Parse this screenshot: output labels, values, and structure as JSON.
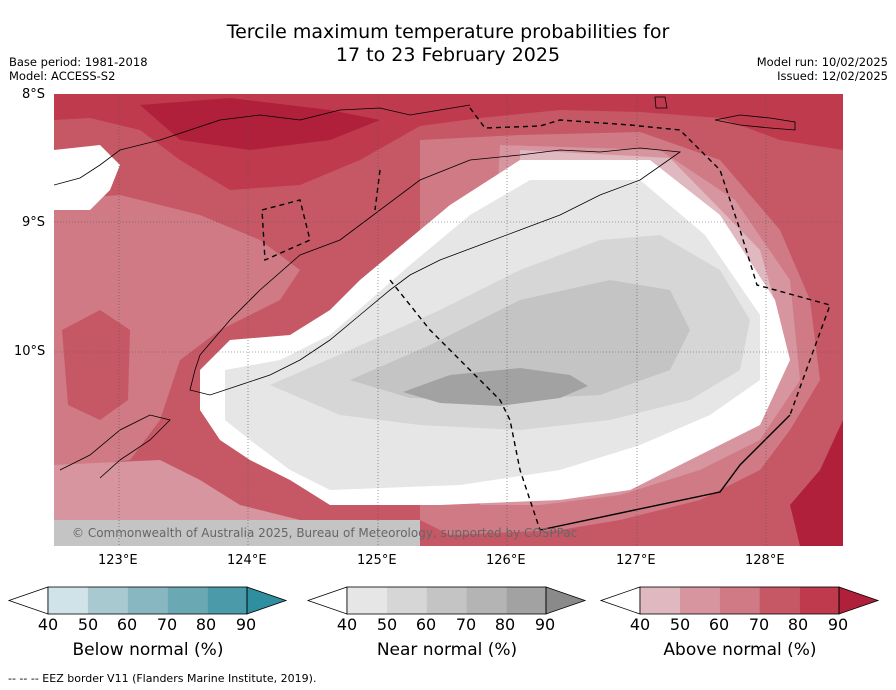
{
  "header": {
    "title_line1": "Tercile maximum temperature probabilities for",
    "title_line2": "17 to 23 February 2025",
    "base_period": "Base period: 1981-2018",
    "model": "Model: ACCESS-S2",
    "model_run": "Model run: 10/02/2025",
    "issued": "Issued: 12/02/2025"
  },
  "map": {
    "lat_labels": [
      "8°S",
      "9°S",
      "10°S"
    ],
    "lon_labels": [
      "123°E",
      "124°E",
      "125°E",
      "126°E",
      "127°E",
      "128°E"
    ],
    "copyright": "© Commonwealth of Australia 2025, Bureau of Meteorology, supported by COSPPac"
  },
  "colorbars": [
    {
      "label": "Below normal (%)",
      "ticks": [
        "40",
        "50",
        "60",
        "70",
        "80",
        "90"
      ],
      "colors": [
        "#cfe3e8",
        "#a8c9cf",
        "#89b7c1",
        "#6aa8b4",
        "#4a9aaa",
        "#2f8fa0"
      ]
    },
    {
      "label": "Near normal (%)",
      "ticks": [
        "40",
        "50",
        "60",
        "70",
        "80",
        "90"
      ],
      "colors": [
        "#e6e6e6",
        "#d6d6d6",
        "#c4c4c4",
        "#b4b4b4",
        "#a2a2a2",
        "#8a8a8a"
      ]
    },
    {
      "label": "Above normal (%)",
      "ticks": [
        "40",
        "50",
        "60",
        "70",
        "80",
        "90"
      ],
      "colors": [
        "#e0b8bf",
        "#d7959f",
        "#cf7a85",
        "#c65866",
        "#be3a4c",
        "#b0203a"
      ]
    }
  ],
  "footer": {
    "legend": "--  --  -- EEZ border V11 (Flanders Marine Institute, 2019)."
  }
}
